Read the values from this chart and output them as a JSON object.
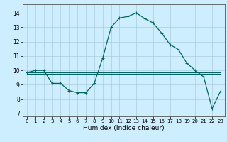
{
  "xlabel": "Humidex (Indice chaleur)",
  "background_color": "#cceeff",
  "grid_color": "#aaccdd",
  "line_color": "#006666",
  "xlim": [
    -0.5,
    23.5
  ],
  "ylim": [
    6.8,
    14.6
  ],
  "yticks": [
    7,
    8,
    9,
    10,
    11,
    12,
    13,
    14
  ],
  "xticks": [
    0,
    1,
    2,
    3,
    4,
    5,
    6,
    7,
    8,
    9,
    10,
    11,
    12,
    13,
    14,
    15,
    16,
    17,
    18,
    19,
    20,
    21,
    22,
    23
  ],
  "line1_x": [
    0,
    1,
    2,
    3,
    4,
    5,
    6,
    7,
    8,
    9,
    10,
    11,
    12,
    13,
    14,
    15,
    16,
    17,
    18,
    19,
    20,
    21,
    22,
    23
  ],
  "line1_y": [
    9.85,
    10.0,
    10.0,
    9.1,
    9.1,
    8.6,
    8.45,
    8.45,
    9.1,
    10.85,
    13.0,
    13.65,
    13.75,
    14.0,
    13.6,
    13.3,
    12.6,
    11.8,
    11.45,
    10.5,
    10.0,
    9.55,
    7.35,
    8.55
  ],
  "line2_x": [
    0,
    1,
    2,
    3,
    4,
    5,
    6,
    7,
    8,
    9,
    10,
    11,
    12,
    13,
    14,
    15,
    16,
    17,
    18,
    19,
    20,
    21,
    22,
    23
  ],
  "line2_y": [
    9.75,
    9.75,
    9.75,
    9.75,
    9.75,
    9.75,
    9.75,
    9.75,
    9.75,
    9.75,
    9.75,
    9.75,
    9.75,
    9.75,
    9.75,
    9.75,
    9.75,
    9.75,
    9.75,
    9.75,
    9.75,
    9.75,
    9.75,
    9.75
  ],
  "line3_x": [
    0,
    1,
    2,
    3,
    4,
    5,
    6,
    7,
    8,
    9,
    10,
    11,
    12,
    13,
    14,
    15,
    16,
    17,
    18,
    19,
    20,
    21,
    22,
    23
  ],
  "line3_y": [
    9.85,
    9.85,
    9.85,
    9.85,
    9.85,
    9.85,
    9.85,
    9.85,
    9.85,
    9.85,
    9.85,
    9.85,
    9.85,
    9.85,
    9.85,
    9.85,
    9.85,
    9.85,
    9.85,
    9.85,
    9.85,
    9.85,
    9.85,
    9.85
  ]
}
